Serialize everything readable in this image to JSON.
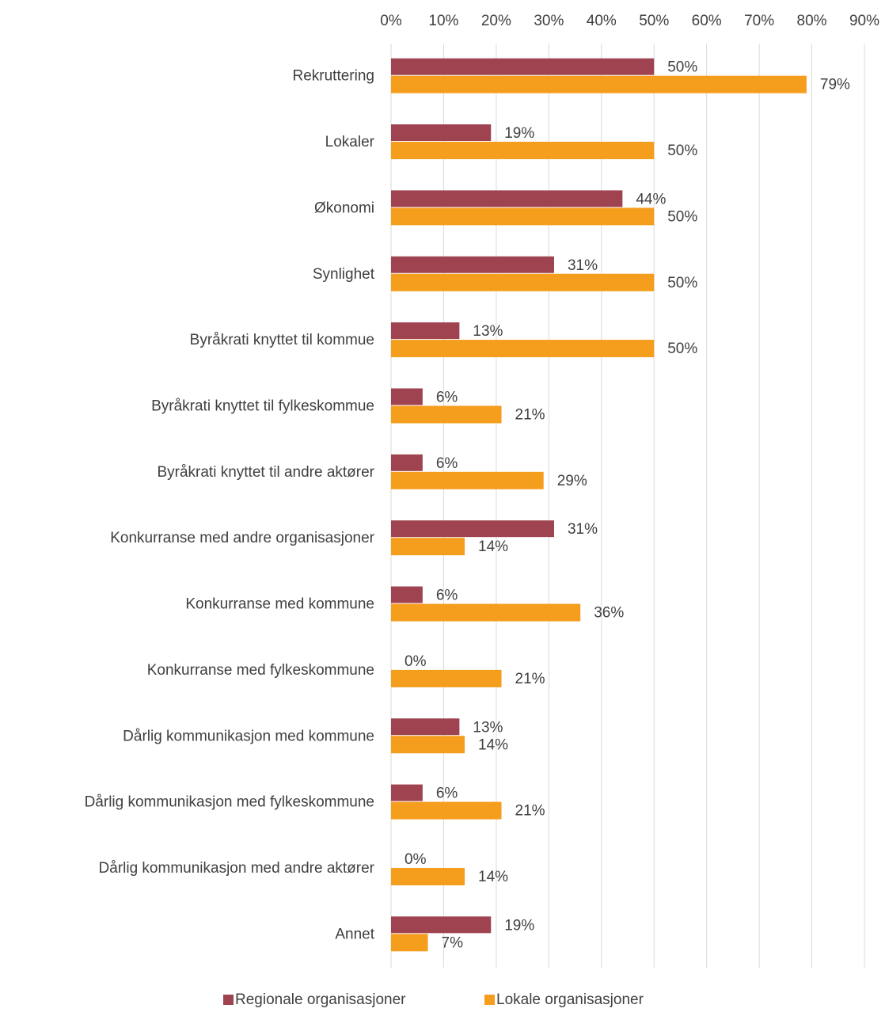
{
  "chart_data": {
    "type": "bar",
    "orientation": "horizontal",
    "categories": [
      "Rekruttering",
      "Lokaler",
      "Økonomi",
      "Synlighet",
      "Byråkrati knyttet til kommue",
      "Byråkrati knyttet til fylkeskommue",
      "Byråkrati knyttet til andre aktører",
      "Konkurranse med andre organisasjoner",
      "Konkurranse med kommune",
      "Konkurranse med fylkeskommune",
      "Dårlig kommunikasjon med kommune",
      "Dårlig kommunikasjon med fylkeskommune",
      "Dårlig kommunikasjon med andre aktører",
      "Annet"
    ],
    "series": [
      {
        "name": "Regionale organisasjoner",
        "color": "#9f4350",
        "values": [
          50,
          19,
          44,
          31,
          13,
          6,
          6,
          31,
          6,
          0,
          13,
          6,
          0,
          19
        ],
        "value_labels": [
          "50%",
          "19%",
          "44%",
          "31%",
          "13%",
          "6%",
          "6%",
          "31%",
          "6%",
          "0%",
          "13%",
          "6%",
          "0%",
          "19%"
        ]
      },
      {
        "name": "Lokale organisasjoner",
        "color": "#f59d1c",
        "values": [
          79,
          50,
          50,
          50,
          50,
          21,
          29,
          14,
          36,
          21,
          14,
          21,
          14,
          7
        ],
        "value_labels": [
          "79%",
          "50%",
          "50%",
          "50%",
          "50%",
          "21%",
          "29%",
          "14%",
          "36%",
          "21%",
          "14%",
          "21%",
          "14%",
          "7%"
        ]
      }
    ],
    "xlim": [
      0,
      90
    ],
    "xticks": [
      {
        "value": 0,
        "label": "0%"
      },
      {
        "value": 10,
        "label": "10%"
      },
      {
        "value": 20,
        "label": "20%"
      },
      {
        "value": 30,
        "label": "30%"
      },
      {
        "value": 40,
        "label": "40%"
      },
      {
        "value": 50,
        "label": "50%"
      },
      {
        "value": 60,
        "label": "60%"
      },
      {
        "value": 70,
        "label": "70%"
      },
      {
        "value": 80,
        "label": "80%"
      },
      {
        "value": 90,
        "label": "90%"
      }
    ],
    "grid": true,
    "legend": "bottom"
  }
}
